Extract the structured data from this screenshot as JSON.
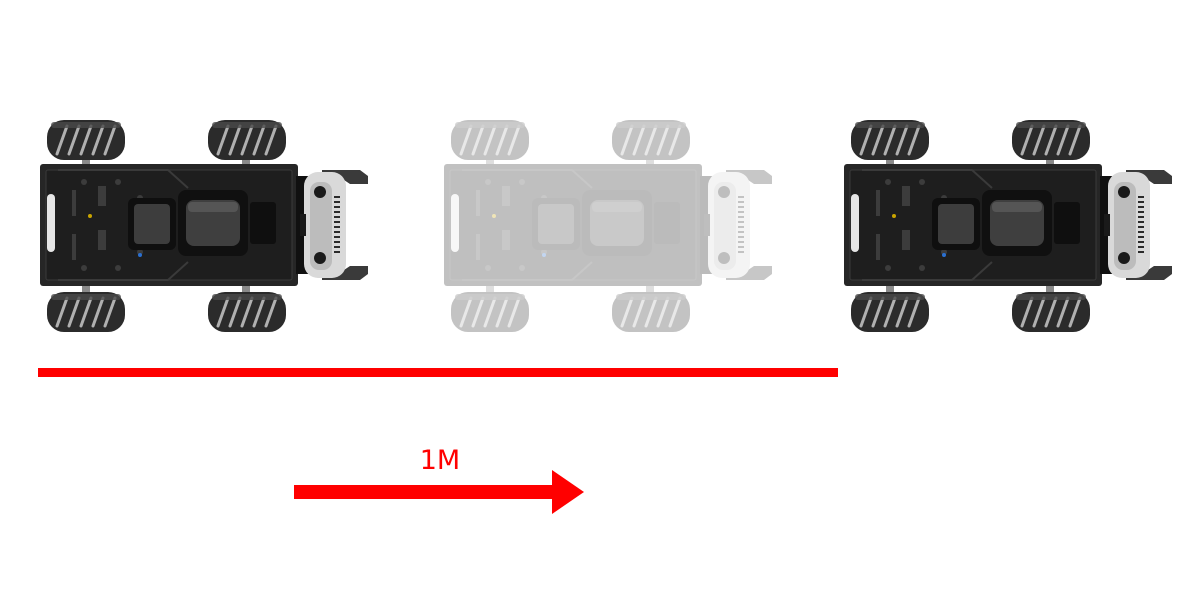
{
  "colors": {
    "accent": "#ff0000",
    "chassis": "#262626",
    "chassis_dark": "#141414",
    "wheel": "#2b2b2b",
    "wheel_roller": "#bdbdbd",
    "front_module": "#d9d9d9"
  },
  "icons": {
    "robot": "mecanum-robot-top-view-icon",
    "arrow": "right-arrow-icon"
  },
  "distance": {
    "label": "1M"
  }
}
